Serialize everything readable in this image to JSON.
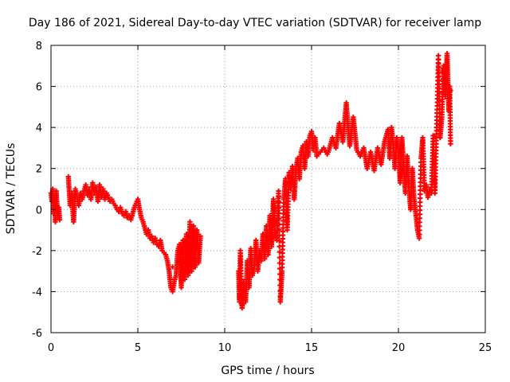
{
  "chart_data": {
    "type": "scatter",
    "title": "Day 186 of 2021, Sidereal Day-to-day VTEC variation (SDTVAR) for receiver lamp",
    "xlabel": "GPS time / hours",
    "ylabel": "SDTVAR / TECUs",
    "xlim": [
      0,
      25
    ],
    "ylim": [
      -6,
      8
    ],
    "xticks": [
      0,
      5,
      10,
      15,
      20,
      25
    ],
    "yticks": [
      -6,
      -4,
      -2,
      0,
      2,
      4,
      6,
      8
    ],
    "grid": true,
    "marker": "plus",
    "color": "#ff0000",
    "series": [
      {
        "values": [
          [
            0.0,
            0.8
          ],
          [
            0.05,
            0.4
          ],
          [
            0.1,
            1.0
          ],
          [
            0.15,
            -0.2
          ],
          [
            0.2,
            0.6
          ],
          [
            0.25,
            -0.6
          ],
          [
            0.3,
            0.9
          ],
          [
            0.35,
            0.2
          ],
          [
            0.4,
            -0.4
          ],
          [
            0.45,
            0.1
          ],
          [
            0.5,
            -0.5
          ],
          [
            1.0,
            1.6
          ],
          [
            1.1,
            0.2
          ],
          [
            1.2,
            0.8
          ],
          [
            1.3,
            -0.6
          ],
          [
            1.35,
            0.3
          ],
          [
            1.4,
            1.0
          ],
          [
            1.5,
            0.6
          ],
          [
            1.6,
            0.2
          ],
          [
            1.7,
            0.8
          ],
          [
            1.8,
            0.5
          ],
          [
            1.9,
            0.9
          ],
          [
            2.0,
            1.2
          ],
          [
            2.1,
            0.7
          ],
          [
            2.2,
            1.0
          ],
          [
            2.3,
            0.5
          ],
          [
            2.4,
            1.3
          ],
          [
            2.5,
            0.8
          ],
          [
            2.6,
            1.1
          ],
          [
            2.7,
            0.4
          ],
          [
            2.8,
            1.2
          ],
          [
            2.9,
            0.6
          ],
          [
            3.0,
            1.0
          ],
          [
            3.1,
            0.5
          ],
          [
            3.2,
            0.8
          ],
          [
            3.3,
            0.6
          ],
          [
            3.4,
            0.4
          ],
          [
            3.5,
            0.5
          ],
          [
            3.6,
            0.3
          ],
          [
            3.7,
            0.2
          ],
          [
            3.8,
            0.0
          ],
          [
            3.9,
            -0.1
          ],
          [
            4.0,
            0.1
          ],
          [
            4.1,
            -0.2
          ],
          [
            4.2,
            -0.3
          ],
          [
            4.3,
            -0.1
          ],
          [
            4.4,
            -0.4
          ],
          [
            4.5,
            -0.3
          ],
          [
            4.6,
            -0.5
          ],
          [
            4.7,
            -0.2
          ],
          [
            4.8,
            0.1
          ],
          [
            4.9,
            0.3
          ],
          [
            5.0,
            0.5
          ],
          [
            5.1,
            0.0
          ],
          [
            5.2,
            -0.4
          ],
          [
            5.3,
            -0.6
          ],
          [
            5.4,
            -0.9
          ],
          [
            5.5,
            -1.2
          ],
          [
            5.6,
            -1.0
          ],
          [
            5.7,
            -1.4
          ],
          [
            5.8,
            -1.3
          ],
          [
            5.9,
            -1.6
          ],
          [
            6.0,
            -1.4
          ],
          [
            6.1,
            -1.7
          ],
          [
            6.2,
            -1.8
          ],
          [
            6.3,
            -1.5
          ],
          [
            6.4,
            -2.0
          ],
          [
            6.5,
            -2.1
          ],
          [
            6.6,
            -2.2
          ],
          [
            6.7,
            -2.5
          ],
          [
            6.8,
            -3.0
          ],
          [
            6.9,
            -3.8
          ],
          [
            7.0,
            -4.0
          ],
          [
            7.1,
            -3.5
          ],
          [
            7.2,
            -3.2
          ],
          [
            7.3,
            -2.0
          ],
          [
            7.4,
            -1.7
          ],
          [
            7.5,
            -3.8
          ],
          [
            7.6,
            -1.5
          ],
          [
            7.7,
            -3.4
          ],
          [
            7.8,
            -1.2
          ],
          [
            7.9,
            -3.2
          ],
          [
            8.0,
            -0.6
          ],
          [
            8.1,
            -3.0
          ],
          [
            8.2,
            -0.8
          ],
          [
            8.3,
            -2.8
          ],
          [
            8.4,
            -1.0
          ],
          [
            8.5,
            -2.6
          ],
          [
            8.6,
            -1.3
          ],
          [
            8.2,
            -1.9
          ],
          [
            7.5,
            -2.5
          ],
          [
            7.0,
            -2.8
          ],
          [
            10.8,
            -3.0
          ],
          [
            10.85,
            -4.5
          ],
          [
            10.9,
            -2.0
          ],
          [
            11.0,
            -4.8
          ],
          [
            11.1,
            -3.5
          ],
          [
            11.2,
            -4.5
          ],
          [
            11.3,
            -2.5
          ],
          [
            11.4,
            -3.8
          ],
          [
            11.5,
            -1.9
          ],
          [
            11.6,
            -3.2
          ],
          [
            11.7,
            -2.8
          ],
          [
            11.8,
            -1.5
          ],
          [
            11.9,
            -3.0
          ],
          [
            12.0,
            -2.0
          ],
          [
            12.1,
            -2.5
          ],
          [
            12.2,
            -1.2
          ],
          [
            12.3,
            -2.4
          ],
          [
            12.4,
            -0.8
          ],
          [
            12.5,
            -2.2
          ],
          [
            12.6,
            -0.3
          ],
          [
            12.7,
            -1.8
          ],
          [
            12.8,
            0.5
          ],
          [
            12.9,
            -1.2
          ],
          [
            13.0,
            -1.5
          ],
          [
            13.1,
            0.9
          ],
          [
            13.2,
            -4.5
          ],
          [
            13.3,
            -3.0
          ],
          [
            13.4,
            0.5
          ],
          [
            13.5,
            1.5
          ],
          [
            13.6,
            -1.0
          ],
          [
            13.7,
            1.8
          ],
          [
            13.8,
            1.0
          ],
          [
            13.9,
            2.1
          ],
          [
            14.0,
            0.5
          ],
          [
            14.1,
            2.0
          ],
          [
            14.2,
            2.5
          ],
          [
            14.3,
            1.5
          ],
          [
            14.4,
            2.8
          ],
          [
            14.5,
            3.1
          ],
          [
            14.6,
            2.0
          ],
          [
            14.7,
            3.3
          ],
          [
            14.8,
            2.6
          ],
          [
            14.9,
            3.6
          ],
          [
            15.0,
            3.8
          ],
          [
            15.1,
            2.9
          ],
          [
            15.2,
            3.5
          ],
          [
            15.3,
            2.6
          ],
          [
            15.5,
            2.8
          ],
          [
            15.7,
            3.0
          ],
          [
            15.9,
            2.7
          ],
          [
            16.0,
            2.9
          ],
          [
            16.2,
            3.5
          ],
          [
            16.4,
            3.0
          ],
          [
            16.6,
            4.2
          ],
          [
            16.8,
            3.3
          ],
          [
            17.0,
            5.2
          ],
          [
            17.1,
            4.0
          ],
          [
            17.2,
            3.1
          ],
          [
            17.4,
            4.5
          ],
          [
            17.6,
            2.9
          ],
          [
            17.8,
            2.6
          ],
          [
            18.0,
            3.0
          ],
          [
            18.2,
            2.0
          ],
          [
            18.4,
            2.8
          ],
          [
            18.6,
            1.9
          ],
          [
            18.8,
            3.0
          ],
          [
            19.0,
            2.2
          ],
          [
            19.2,
            3.3
          ],
          [
            19.4,
            3.9
          ],
          [
            19.5,
            2.5
          ],
          [
            19.6,
            4.0
          ],
          [
            19.7,
            3.2
          ],
          [
            19.8,
            2.0
          ],
          [
            19.9,
            3.5
          ],
          [
            20.0,
            2.8
          ],
          [
            20.1,
            1.3
          ],
          [
            20.2,
            3.5
          ],
          [
            20.3,
            2.2
          ],
          [
            20.4,
            0.8
          ],
          [
            20.5,
            2.6
          ],
          [
            20.6,
            1.1
          ],
          [
            20.7,
            0.0
          ],
          [
            20.8,
            2.0
          ],
          [
            20.9,
            0.5
          ],
          [
            21.0,
            -0.2
          ],
          [
            21.1,
            -1.0
          ],
          [
            21.2,
            -1.4
          ],
          [
            21.3,
            2.5
          ],
          [
            21.4,
            3.5
          ],
          [
            21.5,
            0.9
          ],
          [
            21.6,
            1.2
          ],
          [
            21.7,
            0.6
          ],
          [
            21.8,
            1.0
          ],
          [
            21.9,
            0.8
          ],
          [
            22.0,
            3.6
          ],
          [
            22.1,
            0.8
          ],
          [
            22.2,
            4.0
          ],
          [
            22.3,
            7.5
          ],
          [
            22.4,
            3.5
          ],
          [
            22.5,
            4.5
          ],
          [
            22.6,
            7.0
          ],
          [
            22.7,
            5.5
          ],
          [
            22.8,
            7.6
          ],
          [
            22.85,
            6.2
          ],
          [
            22.9,
            4.8
          ],
          [
            22.95,
            6.0
          ],
          [
            23.0,
            3.2
          ],
          [
            23.0,
            5.8
          ]
        ]
      }
    ]
  }
}
